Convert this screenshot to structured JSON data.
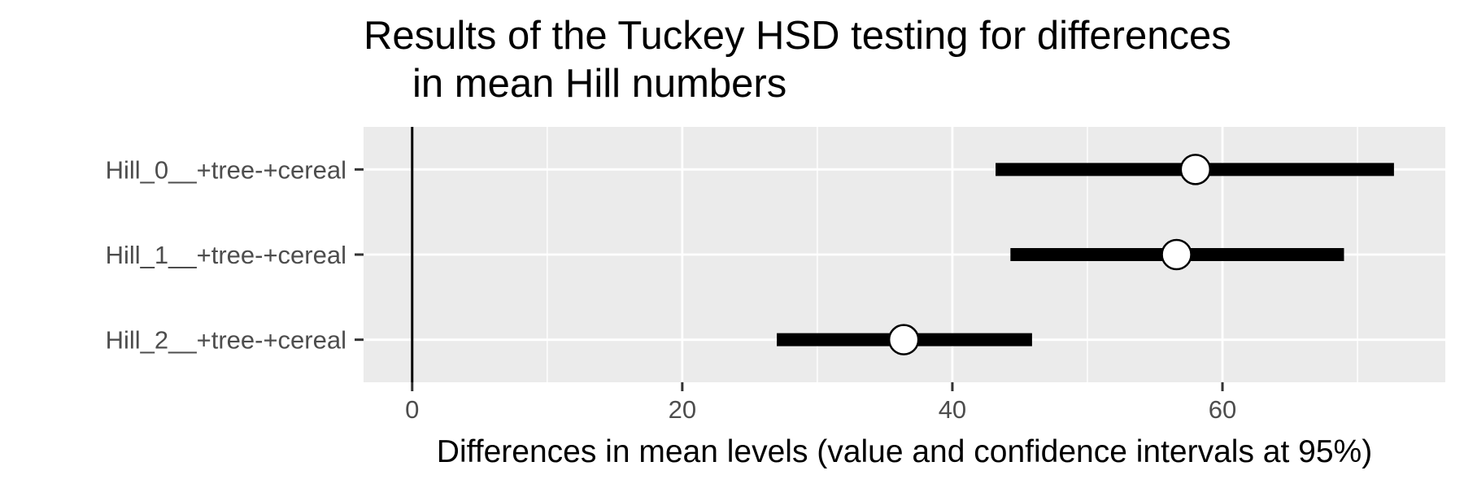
{
  "chart_data": {
    "type": "errorbar",
    "title": [
      "Results of the Tuckey HSD testing for differences",
      "in mean Hill numbers"
    ],
    "xlabel": "Differences in mean levels (value and confidence intervals at 95%)",
    "ylabel": "",
    "xlim": [
      -3.6,
      76.5
    ],
    "x_ticks": [
      0,
      20,
      40,
      60
    ],
    "x_tick_labels": [
      "0",
      "20",
      "40",
      "60"
    ],
    "x_minor_ticks": [
      10,
      30,
      50,
      70
    ],
    "reference_line_x": 0,
    "grid": true,
    "legend": "none",
    "categories": [
      "Hill_0__+tree-+cereal",
      "Hill_1__+tree-+cereal",
      "Hill_2__+tree-+cereal"
    ],
    "series": [
      {
        "estimates": [
          58.0,
          56.6,
          36.4
        ],
        "lower": [
          43.2,
          44.3,
          27.0
        ],
        "upper": [
          72.7,
          69.0,
          45.9
        ]
      }
    ],
    "colors": {
      "panel_background": "#ebebeb",
      "grid": "#ffffff",
      "interval": "#000000",
      "point_fill": "#ffffff",
      "point_stroke": "#000000",
      "tick_text": "#4d4d4d"
    }
  }
}
